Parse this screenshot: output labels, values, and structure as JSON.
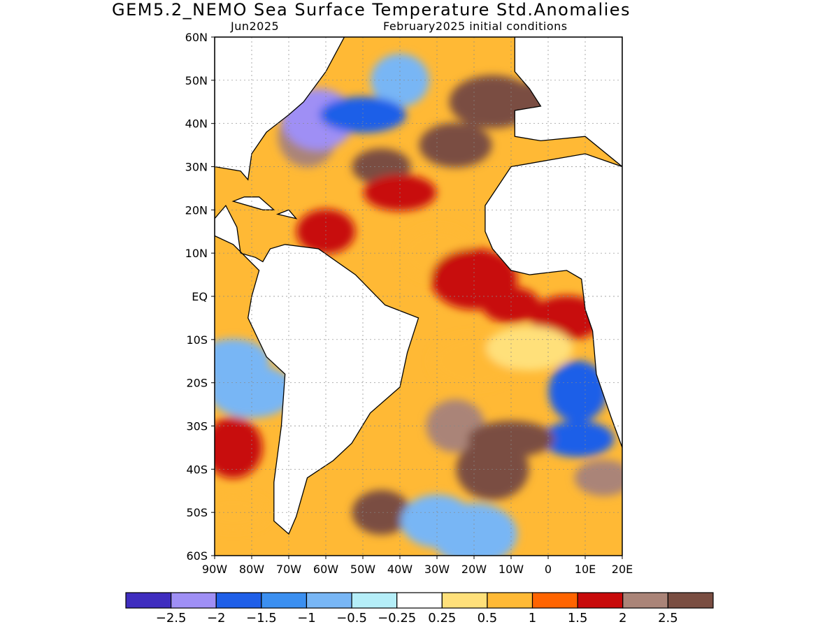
{
  "header": {
    "title": "GEM5.2_NEMO Sea Surface Temperature Std.Anomalies",
    "month": "Jun2025",
    "init": "February2025 initial conditions"
  },
  "map": {
    "projection": "lat-lon",
    "lon_range": [
      -90,
      20
    ],
    "lat_range": [
      -60,
      60
    ],
    "lon_tick_labels": [
      "90W",
      "80W",
      "70W",
      "60W",
      "50W",
      "40W",
      "30W",
      "20W",
      "10W",
      "0",
      "10E",
      "20E"
    ],
    "lon_tick_values": [
      -90,
      -80,
      -70,
      -60,
      -50,
      -40,
      -30,
      -20,
      -10,
      0,
      10,
      20
    ],
    "lat_tick_labels": [
      "60N",
      "50N",
      "40N",
      "30N",
      "20N",
      "10N",
      "EQ",
      "10S",
      "20S",
      "30S",
      "40S",
      "50S",
      "60S"
    ],
    "lat_tick_values": [
      60,
      50,
      40,
      30,
      20,
      10,
      0,
      -10,
      -20,
      -30,
      -40,
      -50,
      -60
    ],
    "grid": true,
    "land_color": "#ffffff"
  },
  "legend": {
    "colors": [
      "#3f2dbf",
      "#9f8ff5",
      "#1f5fe8",
      "#3b8ff0",
      "#78b6f5",
      "#b5eef8",
      "#ffffff",
      "#ffe07a",
      "#ffb935",
      "#ff6400",
      "#c80a0a",
      "#aa8478",
      "#7a4e42"
    ],
    "labels": [
      "−2.5",
      "−2",
      "−1.5",
      "−1",
      "−0.5",
      "−0.25",
      "0.25",
      "0.5",
      "1",
      "1.5",
      "2",
      "2.5"
    ]
  },
  "chart_data": {
    "type": "heatmap",
    "variable": "Sea Surface Temperature Std.Anomalies",
    "levels": [
      -2.5,
      -2,
      -1.5,
      -1,
      -0.5,
      -0.25,
      0.25,
      0.5,
      1,
      1.5,
      2,
      2.5
    ],
    "anomaly_patches": [
      {
        "lon": -45,
        "lat": 30,
        "value": 2.6
      },
      {
        "lon": -25,
        "lat": 35,
        "value": 2.7
      },
      {
        "lon": -15,
        "lat": 45,
        "value": 2.6
      },
      {
        "lon": -65,
        "lat": 37,
        "value": 2.2
      },
      {
        "lon": -40,
        "lat": 24,
        "value": 1.9
      },
      {
        "lon": 0,
        "lat": 45,
        "value": 2.7
      },
      {
        "lon": -40,
        "lat": 50,
        "value": -1.0
      },
      {
        "lon": -62,
        "lat": 41,
        "value": -2.4
      },
      {
        "lon": -50,
        "lat": 42,
        "value": -1.6
      },
      {
        "lon": -60,
        "lat": 15,
        "value": 1.6
      },
      {
        "lon": -30,
        "lat": 10,
        "value": 0.7
      },
      {
        "lon": -20,
        "lat": 4,
        "value": 1.5
      },
      {
        "lon": -10,
        "lat": -2,
        "value": 1.8
      },
      {
        "lon": 5,
        "lat": -5,
        "value": 1.5
      },
      {
        "lon": -20,
        "lat": -15,
        "value": 0.9
      },
      {
        "lon": 8,
        "lat": -22,
        "value": -1.8
      },
      {
        "lon": 8,
        "lat": -33,
        "value": -1.7
      },
      {
        "lon": -5,
        "lat": -12,
        "value": 0.3
      },
      {
        "lon": -25,
        "lat": -30,
        "value": 2.3
      },
      {
        "lon": -15,
        "lat": -40,
        "value": 2.5
      },
      {
        "lon": -10,
        "lat": -33,
        "value": 2.6
      },
      {
        "lon": -45,
        "lat": -50,
        "value": 2.7
      },
      {
        "lon": -30,
        "lat": -52,
        "value": -0.9
      },
      {
        "lon": -20,
        "lat": -55,
        "value": -0.6
      },
      {
        "lon": 15,
        "lat": -42,
        "value": 2.4
      },
      {
        "lon": -85,
        "lat": -15,
        "value": -0.6
      },
      {
        "lon": -80,
        "lat": -22,
        "value": -1.0
      },
      {
        "lon": -85,
        "lat": -35,
        "value": 1.6
      },
      {
        "lon": -85,
        "lat": -50,
        "value": 0.7
      }
    ]
  }
}
